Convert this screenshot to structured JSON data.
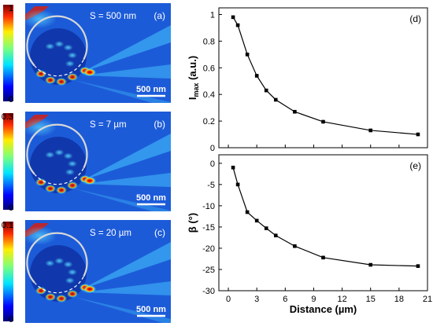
{
  "figure": {
    "field_panels": [
      {
        "label": "(a)",
        "annotation": "S = 500 nm",
        "colorbar": {
          "max": "1",
          "min": "0"
        },
        "scalebar": "500 nm"
      },
      {
        "label": "(b)",
        "annotation": "S = 7 µm",
        "colorbar": {
          "max": "0.3",
          "min": "0"
        },
        "scalebar": "500 nm"
      },
      {
        "label": "(c)",
        "annotation": "S = 20 µm",
        "colorbar": {
          "max": "0.1",
          "min": "0"
        },
        "scalebar": "500 nm"
      }
    ],
    "colors": {
      "field_background": "#1c5bd8",
      "hotspot": "#c80a0a",
      "line": "#000000",
      "ring": "#d8d8d8"
    }
  },
  "chart_data": [
    {
      "type": "line",
      "panel_label": "(d)",
      "x": [
        0.5,
        1,
        2,
        3,
        4,
        5,
        7,
        10,
        15,
        20
      ],
      "values": [
        0.98,
        0.92,
        0.7,
        0.54,
        0.43,
        0.36,
        0.27,
        0.195,
        0.13,
        0.1
      ],
      "ylabel_main": "I",
      "ylabel_sub": "max",
      "ylabel_tail": " (a.u.)",
      "xlabel": "",
      "ylim": [
        0,
        1.05
      ],
      "yticks": [
        "0",
        "0.2",
        "0.4",
        "0.6",
        "0.8",
        "1"
      ],
      "ytick_values": [
        0,
        0.2,
        0.4,
        0.6,
        0.8,
        1
      ],
      "xlim": [
        -1,
        21
      ],
      "xticks": [
        0,
        3,
        6,
        9,
        12,
        15,
        18,
        21
      ],
      "grid": false
    },
    {
      "type": "line",
      "panel_label": "(e)",
      "x": [
        0.5,
        1,
        2,
        3,
        4,
        5,
        7,
        10,
        15,
        20
      ],
      "values": [
        -1,
        -5,
        -11.5,
        -13.5,
        -15.3,
        -17,
        -19.5,
        -22.2,
        -23.9,
        -24.2
      ],
      "ylabel": "β (°)",
      "xlabel": "Distance (µm)",
      "ylim": [
        -30,
        2
      ],
      "yticks": [
        "0",
        "-5",
        "-10",
        "-15",
        "-20",
        "-25",
        "-30"
      ],
      "ytick_values": [
        0,
        -5,
        -10,
        -15,
        -20,
        -25,
        -30
      ],
      "xlim": [
        -1,
        21
      ],
      "xticks": [
        "0",
        "3",
        "6",
        "9",
        "12",
        "15",
        "18",
        "21"
      ],
      "xtick_values": [
        0,
        3,
        6,
        9,
        12,
        15,
        18,
        21
      ],
      "grid": false
    }
  ]
}
